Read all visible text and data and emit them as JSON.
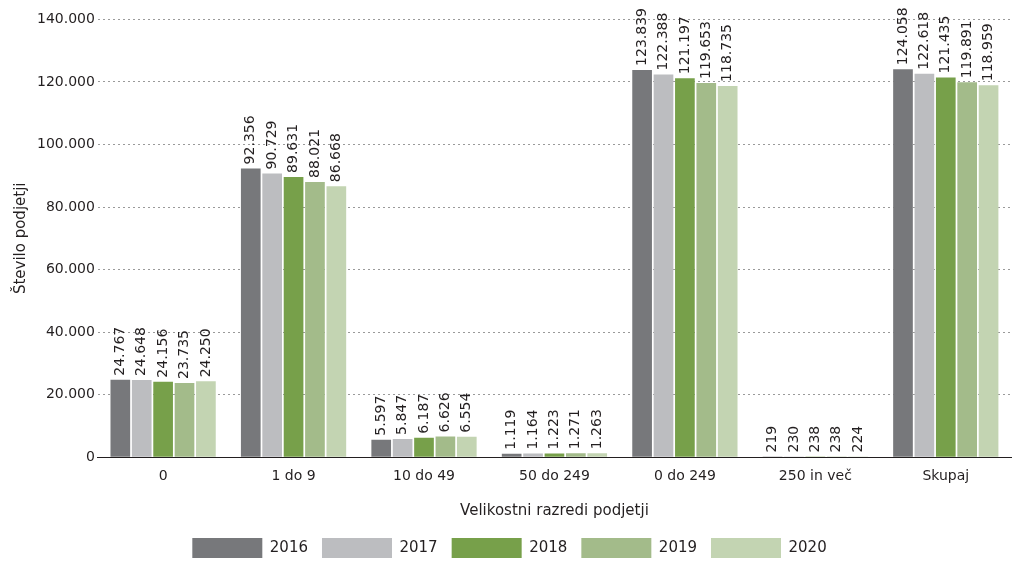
{
  "chart_data": {
    "type": "bar",
    "xlabel": "Velikostni razredi podjetji",
    "ylabel": "Število podjetji",
    "categories": [
      "0",
      "1 do 9",
      "10 do 49",
      "50 do 249",
      "0 do 249",
      "250 in več",
      "Skupaj"
    ],
    "series": [
      {
        "name": "2016",
        "color": "#77787b",
        "values": [
          24767,
          92356,
          5597,
          1119,
          123839,
          219,
          124058
        ],
        "value_labels": [
          "24.767",
          "92.356",
          "5.597",
          "1.119",
          "123.839",
          "219",
          "124.058"
        ]
      },
      {
        "name": "2017",
        "color": "#bcbdc0",
        "values": [
          24648,
          90729,
          5847,
          1164,
          122388,
          230,
          122618
        ],
        "value_labels": [
          "24.648",
          "90.729",
          "5.847",
          "1.164",
          "122.388",
          "230",
          "122.618"
        ]
      },
      {
        "name": "2018",
        "color": "#77a04a",
        "values": [
          24156,
          89631,
          6187,
          1223,
          121197,
          238,
          121435
        ],
        "value_labels": [
          "24.156",
          "89.631",
          "6.187",
          "1.223",
          "121.197",
          "238",
          "121.435"
        ]
      },
      {
        "name": "2019",
        "color": "#a3bb8a",
        "values": [
          23735,
          88021,
          6626,
          1271,
          119653,
          238,
          119891
        ],
        "value_labels": [
          "23.735",
          "88.021",
          "6.626",
          "1.271",
          "119.653",
          "238",
          "119.891"
        ]
      },
      {
        "name": "2020",
        "color": "#c3d4b2",
        "values": [
          24250,
          86668,
          6554,
          1263,
          118735,
          224,
          118959
        ],
        "value_labels": [
          "24.250",
          "86.668",
          "6.554",
          "1.263",
          "118.735",
          "224",
          "118.959"
        ]
      }
    ],
    "ylim": [
      0,
      140000
    ],
    "yticks": [
      {
        "value": 0,
        "label": "0"
      },
      {
        "value": 20000,
        "label": "20.000"
      },
      {
        "value": 40000,
        "label": "40.000"
      },
      {
        "value": 60000,
        "label": "60.000"
      },
      {
        "value": 80000,
        "label": "80.000"
      },
      {
        "value": 100000,
        "label": "100.000"
      },
      {
        "value": 120000,
        "label": "120.000"
      },
      {
        "value": 140000,
        "label": "140.000"
      }
    ],
    "grid": "y",
    "legend": "bottom"
  }
}
